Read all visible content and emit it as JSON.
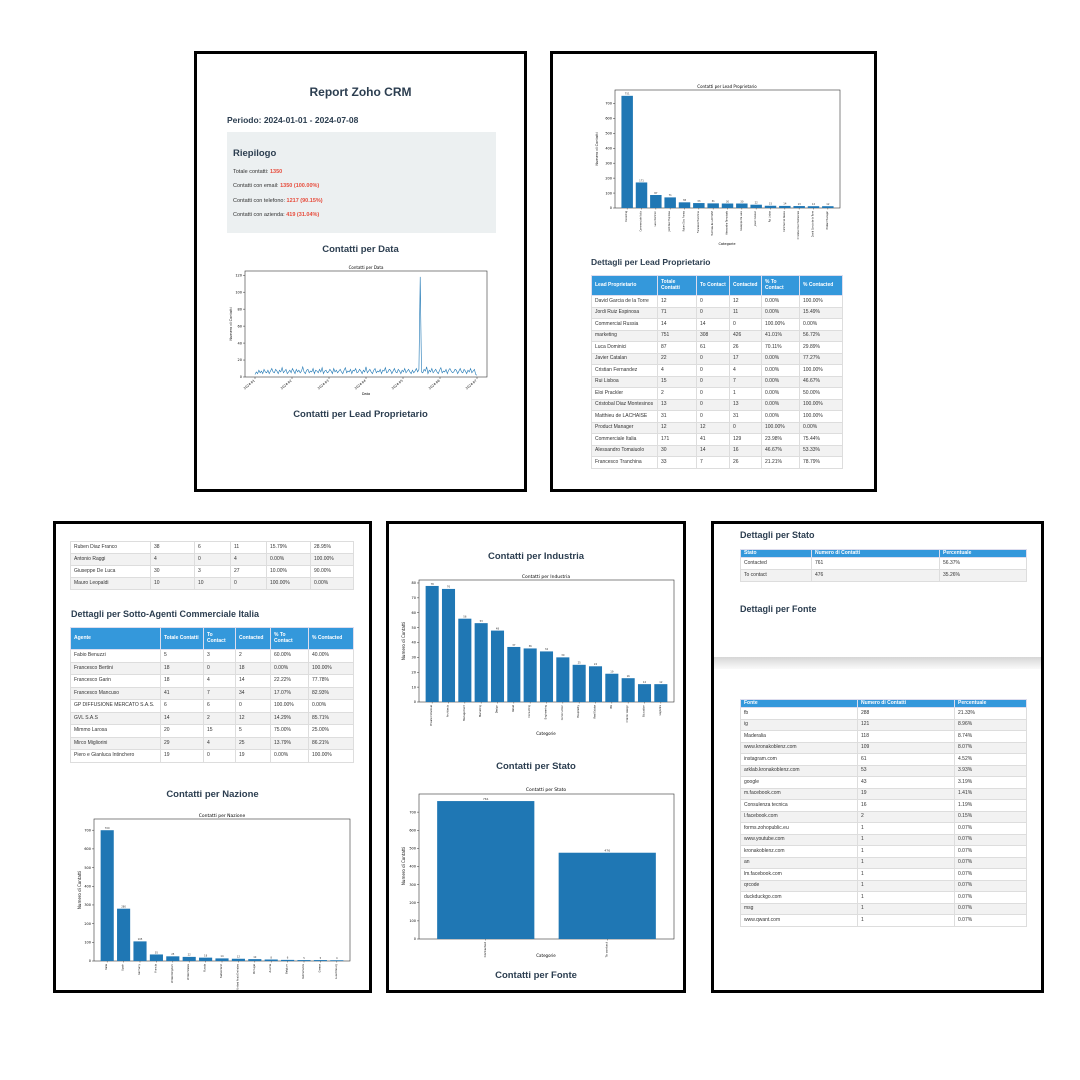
{
  "p1": {
    "title": "Report Zoho CRM",
    "period": "Periodo: 2024-01-01 - 2024-07-08",
    "summary_title": "Riepilogo",
    "summary": [
      {
        "label": "Totale contatti:",
        "value": "1350"
      },
      {
        "label": "Contatti con email:",
        "value": "1350 (100.00%)"
      },
      {
        "label": "Contatti con telefono:",
        "value": "1217 (90.15%)"
      },
      {
        "label": "Contatti con azienda:",
        "value": "419 (31.04%)"
      }
    ],
    "section_date": "Contatti per Data",
    "section_lead": "Contatti per Lead Proprietario"
  },
  "chart_date": {
    "type": "line",
    "title": "Contatti per Data",
    "xlabel": "Data",
    "ylabel": "Numero di Contatti",
    "yticks": [
      "0",
      "20",
      "40",
      "60",
      "80",
      "100",
      "120"
    ],
    "xticks": [
      "2024-01",
      "2024-02",
      "2024-03",
      "2024-04",
      "2024-05",
      "2024-06",
      "2024-07"
    ],
    "ylim": [
      0,
      125
    ],
    "color": "#1f77b4",
    "values": [
      3,
      6,
      4,
      8,
      5,
      7,
      4,
      9,
      6,
      5,
      8,
      4,
      7,
      10,
      6,
      5,
      9,
      7,
      4,
      8,
      6,
      11,
      5,
      7,
      9,
      4,
      6,
      8,
      5,
      10,
      7,
      4,
      9,
      6,
      8,
      5,
      7,
      12,
      6,
      4,
      8,
      9,
      5,
      7,
      6,
      10,
      4,
      8,
      7,
      5,
      9,
      6,
      11,
      4,
      7,
      8,
      5,
      6,
      9,
      7,
      4,
      10,
      6,
      8,
      5,
      7,
      9,
      6,
      4,
      8,
      11,
      5,
      7,
      6,
      9,
      4,
      8,
      7,
      10,
      5,
      6,
      9,
      7,
      4,
      8,
      6,
      12,
      5,
      7,
      9,
      6,
      4,
      8,
      10,
      5,
      7,
      6,
      9,
      4,
      8,
      7,
      11,
      5,
      6,
      9,
      8,
      4,
      7,
      10,
      6,
      5,
      9,
      7,
      4,
      8,
      6,
      10,
      5,
      7,
      9,
      6,
      4,
      8,
      5,
      7,
      10,
      6,
      9,
      118,
      6,
      5,
      9,
      7,
      12,
      4,
      8,
      6,
      10,
      5,
      7,
      9,
      6,
      4,
      8,
      11,
      5,
      7,
      6,
      9,
      4,
      8,
      10,
      7,
      5,
      6,
      9,
      8,
      4,
      7,
      10,
      6,
      5,
      9,
      7,
      4,
      8,
      6,
      10,
      5,
      7,
      9,
      3,
      2
    ]
  },
  "chart_lead": {
    "type": "bar",
    "title": "Contatti per Lead Proprietario",
    "xlabel": "Categorie",
    "ylabel": "Numero di Contatti",
    "yticks": [
      "0",
      "100",
      "200",
      "300",
      "400",
      "500",
      "600",
      "700"
    ],
    "ylim": [
      0,
      790
    ],
    "color": "#1f77b4",
    "categories": [
      "marketing",
      "Commerciale Italia",
      "Luca Dominici",
      "Jordi Ruiz Espinosa",
      "Ruben Diaz Franco",
      "Francesco Tranchina",
      "Matthieu de LACHAISE",
      "Alessandro Tomaiuolo",
      "Giuseppe De Luca",
      "Javier Catalan",
      "Rui Lisboa",
      "Commercial Russia",
      "Cristobal Diaz Montesinos",
      "David Garcia de la Torre",
      "Product Manager"
    ],
    "values": [
      751,
      171,
      87,
      71,
      38,
      33,
      31,
      30,
      30,
      22,
      15,
      14,
      13,
      12,
      12
    ]
  },
  "p2": {
    "section": "Dettagli per Lead Proprietario",
    "headers": [
      "Lead Proprietario",
      "Totale Contatti",
      "To Contact",
      "Contacted",
      "% To Contact",
      "% Contacted"
    ],
    "rows": [
      [
        "David Garcia de la Torre",
        "12",
        "0",
        "12",
        "0.00%",
        "100.00%"
      ],
      [
        "Jordi Ruiz Espinosa",
        "71",
        "0",
        "11",
        "0.00%",
        "15.49%"
      ],
      [
        "Commercial Russia",
        "14",
        "14",
        "0",
        "100.00%",
        "0.00%"
      ],
      [
        "marketing",
        "751",
        "308",
        "426",
        "41.01%",
        "56.72%"
      ],
      [
        "Luca Dominici",
        "87",
        "61",
        "26",
        "70.11%",
        "29.89%"
      ],
      [
        "Javier Catalan",
        "22",
        "0",
        "17",
        "0.00%",
        "77.27%"
      ],
      [
        "Cristian Fernandez",
        "4",
        "0",
        "4",
        "0.00%",
        "100.00%"
      ],
      [
        "Rui Lisboa",
        "15",
        "0",
        "7",
        "0.00%",
        "46.67%"
      ],
      [
        "Eloi Prackler",
        "2",
        "0",
        "1",
        "0.00%",
        "50.00%"
      ],
      [
        "Cristobal Diaz Montesinos",
        "13",
        "0",
        "13",
        "0.00%",
        "100.00%"
      ],
      [
        "Matthieu de LACHAISE",
        "31",
        "0",
        "31",
        "0.00%",
        "100.00%"
      ],
      [
        "Product Manager",
        "12",
        "12",
        "0",
        "100.00%",
        "0.00%"
      ],
      [
        "Commerciale Italia",
        "171",
        "41",
        "129",
        "23.98%",
        "75.44%"
      ],
      [
        "Alessandro Tomaiuolo",
        "30",
        "14",
        "16",
        "46.67%",
        "53.33%"
      ],
      [
        "Francesco Tranchina",
        "33",
        "7",
        "26",
        "21.21%",
        "78.79%"
      ]
    ]
  },
  "p3": {
    "top_rows": [
      [
        "Ruben Diaz Franco",
        "38",
        "6",
        "11",
        "15.79%",
        "28.95%"
      ],
      [
        "Antonio Raggi",
        "4",
        "0",
        "4",
        "0.00%",
        "100.00%"
      ],
      [
        "Giuseppe De Luca",
        "30",
        "3",
        "27",
        "10.00%",
        "90.00%"
      ],
      [
        "Mauro Leopaldi",
        "10",
        "10",
        "0",
        "100.00%",
        "0.00%"
      ]
    ],
    "section_agents": "Dettagli per Sotto-Agenti Commerciale Italia",
    "agent_headers": [
      "Agente",
      "Totale Contatti",
      "To Contact",
      "Contacted",
      "% To Contact",
      "% Contacted"
    ],
    "agent_rows": [
      [
        "Fabio Benuzzi",
        "5",
        "3",
        "2",
        "60.00%",
        "40.00%"
      ],
      [
        "Francesco Bertini",
        "18",
        "0",
        "18",
        "0.00%",
        "100.00%"
      ],
      [
        "Francesco Garin",
        "18",
        "4",
        "14",
        "22.22%",
        "77.78%"
      ],
      [
        "Francesco Mancuso",
        "41",
        "7",
        "34",
        "17.07%",
        "82.93%"
      ],
      [
        "GP DIFFUSIONE MERCATO S.A.S.",
        "6",
        "6",
        "0",
        "100.00%",
        "0.00%"
      ],
      [
        "GVL S.A.S",
        "14",
        "2",
        "12",
        "14.29%",
        "85.71%"
      ],
      [
        "Mimmo Larosa",
        "20",
        "15",
        "5",
        "75.00%",
        "25.00%"
      ],
      [
        "Mirco Migliorini",
        "29",
        "4",
        "25",
        "13.79%",
        "86.21%"
      ],
      [
        "Piero e Gianluca Intinchero",
        "19",
        "0",
        "19",
        "0.00%",
        "100.00%"
      ]
    ],
    "section_nation": "Contatti per Nazione"
  },
  "chart_nation": {
    "type": "bar",
    "title": "Contatti per Nazione",
    "ylabel": "Numero di Contatti",
    "yticks": [
      "0",
      "100",
      "200",
      "300",
      "400",
      "500",
      "600",
      "700"
    ],
    "ylim": [
      0,
      760
    ],
    "color": "#1f77b4",
    "categories": [
      "Italia",
      "Spain",
      "Germany",
      "Francia",
      "United Kingdom",
      "United States",
      "Russia",
      "Switzerland",
      "United Arab Emirates",
      "Portugal",
      "Austria",
      "Belgium",
      "Netherlands",
      "Greece",
      "Luxembourg"
    ],
    "values": [
      700,
      280,
      105,
      35,
      25,
      22,
      18,
      14,
      12,
      10,
      8,
      6,
      5,
      5,
      4
    ]
  },
  "p4": {
    "section_industry": "Contatti per Industria",
    "section_stato": "Contatti per Stato",
    "section_fonte": "Contatti per Fonte"
  },
  "chart_industry": {
    "type": "bar",
    "title": "Contatti per Industria",
    "xlabel": "Categorie",
    "ylabel": "Numero di Contatti",
    "yticks": [
      "0",
      "10",
      "20",
      "30",
      "40",
      "50",
      "60",
      "70",
      "80"
    ],
    "ylim": [
      0,
      82
    ],
    "color": "#1f77b4",
    "categories": [
      "Private individual",
      "Architects",
      "Management",
      "Marketing",
      "Design",
      "Retail",
      "Consulting",
      "Engineering",
      "Construction",
      "Hospitality",
      "Real Estate",
      "ISV",
      "Interior design",
      "Education",
      "Logistics"
    ],
    "values": [
      78,
      76,
      56,
      53,
      48,
      37,
      36,
      34,
      30,
      25,
      24,
      19,
      16,
      12,
      12
    ]
  },
  "chart_stato": {
    "type": "bar",
    "title": "Contatti per Stato",
    "xlabel": "Categorie",
    "ylabel": "Numero di Contatti",
    "yticks": [
      "0",
      "100",
      "200",
      "300",
      "400",
      "500",
      "600",
      "700"
    ],
    "ylim": [
      0,
      800
    ],
    "color": "#1f77b4",
    "categories": [
      "Contacted",
      "To contact"
    ],
    "values": [
      761,
      476
    ]
  },
  "p5": {
    "section_stato": "Dettagli per Stato",
    "stato_headers": [
      "Stato",
      "Numero di Contatti",
      "Percentuale"
    ],
    "stato_rows": [
      [
        "Contacted",
        "761",
        "56.37%"
      ],
      [
        "To contact",
        "476",
        "35.26%"
      ]
    ],
    "section_fonte": "Dettagli per Fonte",
    "fonte_headers": [
      "Fonte",
      "Numero di Contatti",
      "Percentuale"
    ],
    "fonte_rows": [
      [
        "fb",
        "288",
        "21.33%"
      ],
      [
        "ig",
        "121",
        "8.96%"
      ],
      [
        "Maderalia",
        "118",
        "8.74%"
      ],
      [
        "www.kronakoblenz.com",
        "109",
        "8.07%"
      ],
      [
        "instagram.com",
        "61",
        "4.52%"
      ],
      [
        "arklab.kronakoblenz.com",
        "53",
        "3.93%"
      ],
      [
        "google",
        "43",
        "3.19%"
      ],
      [
        "m.facebook.com",
        "19",
        "1.41%"
      ],
      [
        "Consulenza tecnica",
        "16",
        "1.19%"
      ],
      [
        "l.facebook.com",
        "2",
        "0.15%"
      ],
      [
        "forms.zohopublic.eu",
        "1",
        "0.07%"
      ],
      [
        "www.youtube.com",
        "1",
        "0.07%"
      ],
      [
        "kronakoblenz.com",
        "1",
        "0.07%"
      ],
      [
        "an",
        "1",
        "0.07%"
      ],
      [
        "lm.facebook.com",
        "1",
        "0.07%"
      ],
      [
        "qrcode",
        "1",
        "0.07%"
      ],
      [
        "duckduckgo.com",
        "1",
        "0.07%"
      ],
      [
        "msg",
        "1",
        "0.07%"
      ],
      [
        "www.qwant.com",
        "1",
        "0.07%"
      ]
    ]
  }
}
